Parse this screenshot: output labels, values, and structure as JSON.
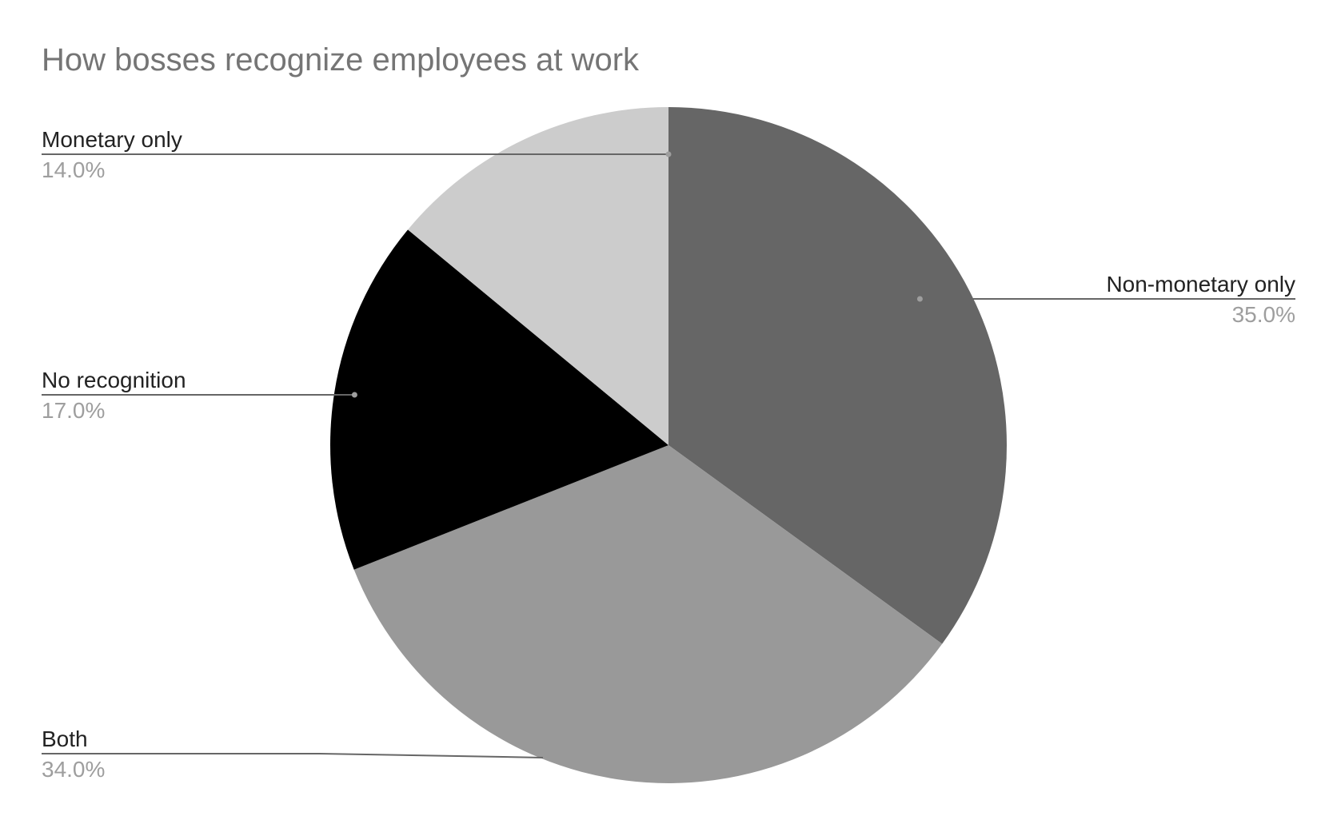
{
  "chart_data": {
    "type": "pie",
    "title": "How bosses recognize employees at work",
    "start_angle_deg": 0,
    "direction": "clockwise",
    "slices": [
      {
        "label": "Non-monetary only",
        "value": 35.0,
        "display": "35.0%",
        "color": "#666666"
      },
      {
        "label": "Both",
        "value": 34.0,
        "display": "34.0%",
        "color": "#999999"
      },
      {
        "label": "No recognition",
        "value": 17.0,
        "display": "17.0%",
        "color": "#000000"
      },
      {
        "label": "Monetary only",
        "value": 14.0,
        "display": "14.0%",
        "color": "#cccccc"
      }
    ]
  }
}
